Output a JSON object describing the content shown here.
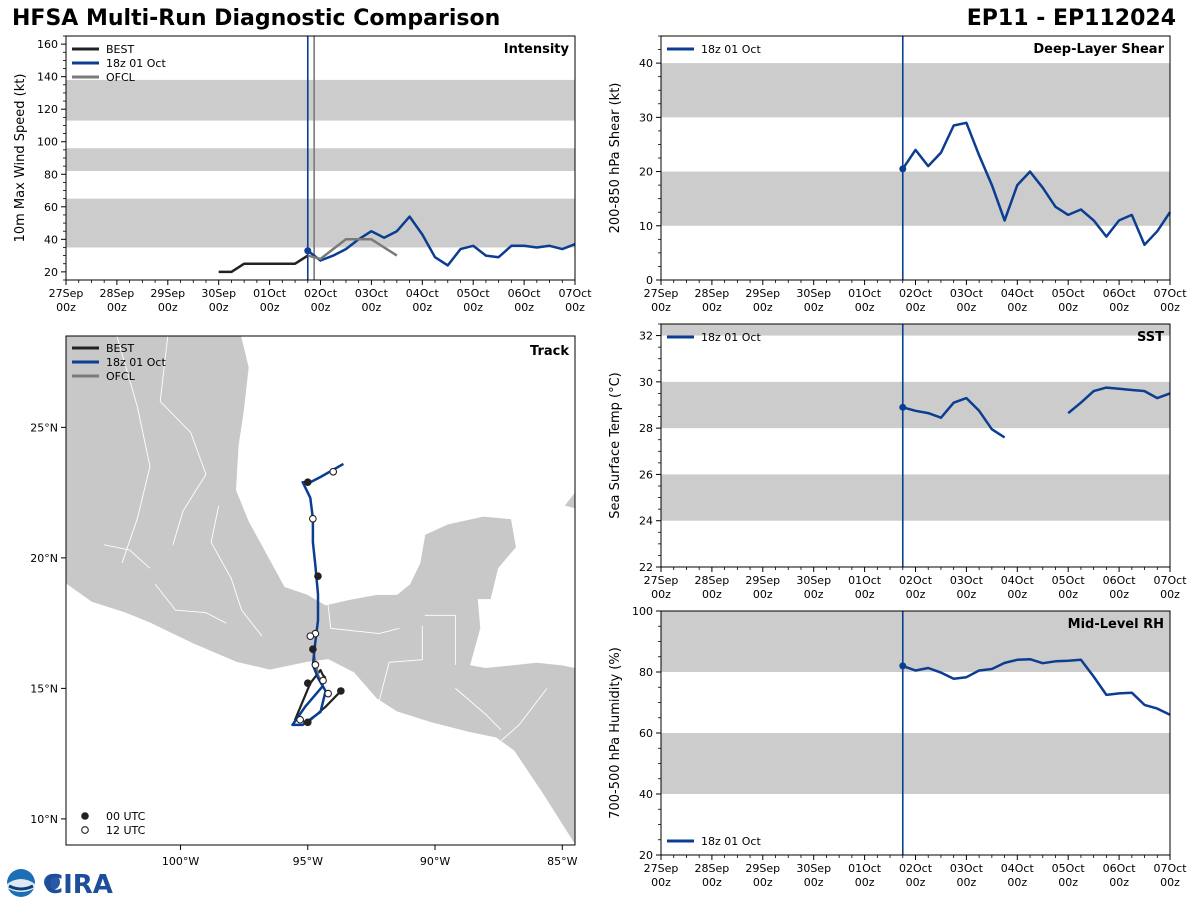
{
  "header": {
    "left_title": "HFSA Multi-Run Diagnostic Comparison",
    "right_title": "EP11 - EP112024"
  },
  "logo_text": "CIRA",
  "colors": {
    "best": "#222222",
    "run": "#0b3d91",
    "ofcl": "#7a7a7a",
    "band": "#cccccc",
    "land": "#c8c8c8"
  },
  "time_axis": {
    "ticks": [
      "27Sep\n00z",
      "28Sep\n00z",
      "29Sep\n00z",
      "30Sep\n00z",
      "01Oct\n00z",
      "02Oct\n00z",
      "03Oct\n00z",
      "04Oct\n00z",
      "05Oct\n00z",
      "06Oct\n00z",
      "07Oct\n00z"
    ],
    "init_marker_day": 4.75,
    "ofcl_marker_day": 4.875
  },
  "chart_data": [
    {
      "id": "intensity",
      "type": "line",
      "title": "Intensity",
      "ylabel": "10m Max Wind Speed (kt)",
      "ylim": [
        15,
        165
      ],
      "yticks": [
        20,
        40,
        60,
        80,
        100,
        120,
        140,
        160
      ],
      "bands": [
        [
          35,
          65
        ],
        [
          82,
          96
        ],
        [
          113,
          138
        ]
      ],
      "legend": [
        "BEST",
        "18z 01 Oct",
        "OFCL"
      ],
      "series": [
        {
          "name": "BEST",
          "color": "#222222",
          "x": [
            3,
            3.25,
            3.5,
            3.75,
            4,
            4.25,
            4.5,
            4.75
          ],
          "y": [
            20,
            20,
            25,
            25,
            25,
            25,
            25,
            30
          ]
        },
        {
          "name": "18z 01 Oct",
          "color": "#0b3d91",
          "x": [
            4.75,
            5,
            5.25,
            5.5,
            5.75,
            6,
            6.25,
            6.5,
            6.75,
            7,
            7.25,
            7.5,
            7.75,
            8,
            8.25,
            8.5,
            8.75,
            9,
            9.25,
            9.5,
            9.75,
            10
          ],
          "y": [
            33,
            27,
            30,
            34,
            40,
            45,
            41,
            45,
            54,
            43,
            29,
            24,
            34,
            36,
            30,
            29,
            36,
            36,
            35,
            36,
            34,
            37
          ]
        },
        {
          "name": "OFCL",
          "color": "#7a7a7a",
          "x": [
            4.75,
            5,
            5.5,
            6,
            6.5
          ],
          "y": [
            30,
            28,
            40,
            40,
            30
          ]
        }
      ]
    },
    {
      "id": "shear",
      "type": "line",
      "title": "Deep-Layer Shear",
      "ylabel": "200-850 hPa Shear (kt)",
      "ylim": [
        0,
        45
      ],
      "yticks": [
        0,
        10,
        20,
        30,
        40
      ],
      "bands": [
        [
          10,
          20
        ],
        [
          30,
          40
        ]
      ],
      "legend": [
        "18z 01 Oct"
      ],
      "series": [
        {
          "name": "18z 01 Oct",
          "color": "#0b3d91",
          "x": [
            4.75,
            5,
            5.25,
            5.5,
            5.75,
            6,
            6.25,
            6.5,
            6.75,
            7,
            7.25,
            7.5,
            7.75,
            8,
            8.25,
            8.5,
            8.75,
            9,
            9.25,
            9.5,
            9.75,
            10
          ],
          "y": [
            20.5,
            24,
            21,
            23.5,
            28.5,
            29,
            23,
            17.5,
            11,
            17.5,
            20,
            17,
            13.5,
            12,
            13,
            11,
            8,
            11,
            12,
            6.5,
            9,
            12.5
          ]
        }
      ]
    },
    {
      "id": "sst",
      "type": "line",
      "title": "SST",
      "ylabel": "Sea Surface Temp (°C)",
      "ylim": [
        22,
        32.5
      ],
      "yticks": [
        22,
        24,
        26,
        28,
        30,
        32
      ],
      "bands": [
        [
          24,
          26
        ],
        [
          28,
          30
        ],
        [
          32,
          32.5
        ]
      ],
      "legend": [
        "18z 01 Oct"
      ],
      "series": [
        {
          "name": "18z 01 Oct",
          "color": "#0b3d91",
          "segments": [
            {
              "x": [
                4.75,
                5,
                5.25,
                5.5,
                5.75,
                6,
                6.25,
                6.5,
                6.75
              ],
              "y": [
                28.9,
                28.75,
                28.65,
                28.45,
                29.1,
                29.3,
                28.75,
                27.95,
                27.6
              ]
            },
            {
              "x": [
                8,
                8.25,
                8.5,
                8.75,
                9,
                9.25,
                9.5,
                9.75,
                10
              ],
              "y": [
                28.65,
                29.1,
                29.6,
                29.75,
                29.7,
                29.65,
                29.6,
                29.3,
                29.5
              ]
            }
          ]
        }
      ]
    },
    {
      "id": "rh",
      "type": "line",
      "title": "Mid-Level RH",
      "ylabel": "700-500 hPa Humidity (%)",
      "ylim": [
        20,
        100
      ],
      "yticks": [
        20,
        40,
        60,
        80,
        100
      ],
      "bands": [
        [
          40,
          60
        ],
        [
          80,
          100
        ]
      ],
      "legend": [
        "18z 01 Oct"
      ],
      "series": [
        {
          "name": "18z 01 Oct",
          "color": "#0b3d91",
          "x": [
            4.75,
            5,
            5.25,
            5.5,
            5.75,
            6,
            6.25,
            6.5,
            6.75,
            7,
            7.25,
            7.5,
            7.75,
            8,
            8.25,
            8.5,
            8.75,
            9,
            9.25,
            9.5,
            9.75,
            10
          ],
          "y": [
            82,
            80.5,
            81.3,
            79.8,
            77.8,
            78.3,
            80.5,
            81,
            83,
            84,
            84.2,
            82.9,
            83.5,
            83.7,
            84,
            78.5,
            72.5,
            73,
            73.2,
            69.2,
            68,
            66
          ]
        }
      ]
    },
    {
      "id": "track",
      "type": "scatter",
      "title": "Track",
      "xlim": [
        -104.5,
        -84.5
      ],
      "ylim": [
        9.0,
        28.5
      ],
      "xticks": [
        -100,
        -95,
        -90,
        -85
      ],
      "xticklabels": [
        "100°W",
        "95°W",
        "90°W",
        "85°W"
      ],
      "yticks": [
        10,
        15,
        20,
        25
      ],
      "yticklabels": [
        "10°N",
        "15°N",
        "20°N",
        "25°N"
      ],
      "legend": [
        "BEST",
        "18z 01 Oct",
        "OFCL"
      ],
      "marker_legend": [
        "00 UTC",
        "12 UTC"
      ],
      "best": {
        "lon": [
          -93.7,
          -94.3,
          -95.0,
          -95.5,
          -94.9,
          -94.5,
          -94.4,
          -94.3
        ],
        "lat": [
          14.9,
          14.3,
          13.7,
          13.8,
          15.2,
          15.7,
          15.5,
          15.4
        ]
      },
      "run": {
        "lon": [
          -94.4,
          -95.1,
          -95.6,
          -95.2,
          -94.5,
          -94.3,
          -94.6,
          -94.8,
          -94.7,
          -94.6,
          -94.6,
          -94.7,
          -94.8,
          -94.8,
          -94.9,
          -95.2,
          -94.9,
          -94.5,
          -93.6
        ],
        "lat": [
          15.1,
          14.3,
          13.6,
          13.6,
          14.1,
          14.9,
          15.4,
          15.9,
          16.8,
          17.6,
          18.6,
          19.7,
          20.6,
          21.5,
          22.3,
          22.9,
          22.9,
          23.1,
          23.6
        ]
      },
      "ofcl": {
        "lon": [
          -94.4,
          -94.6,
          -94.7,
          -94.8
        ],
        "lat": [
          15.1,
          15.5,
          16.0,
          16.5
        ]
      },
      "points_00utc": {
        "lon": [
          -93.7,
          -95.0,
          -95.0,
          -94.8,
          -94.6,
          -95.0
        ],
        "lat": [
          14.9,
          13.7,
          15.2,
          16.5,
          19.3,
          22.9
        ]
      },
      "points_12utc": {
        "lon": [
          -94.2,
          -95.3,
          -94.4,
          -94.7,
          -94.7,
          -94.9,
          -94.8,
          -94.0
        ],
        "lat": [
          14.8,
          13.8,
          15.3,
          15.9,
          17.1,
          17.0,
          21.5,
          23.3
        ]
      }
    }
  ]
}
